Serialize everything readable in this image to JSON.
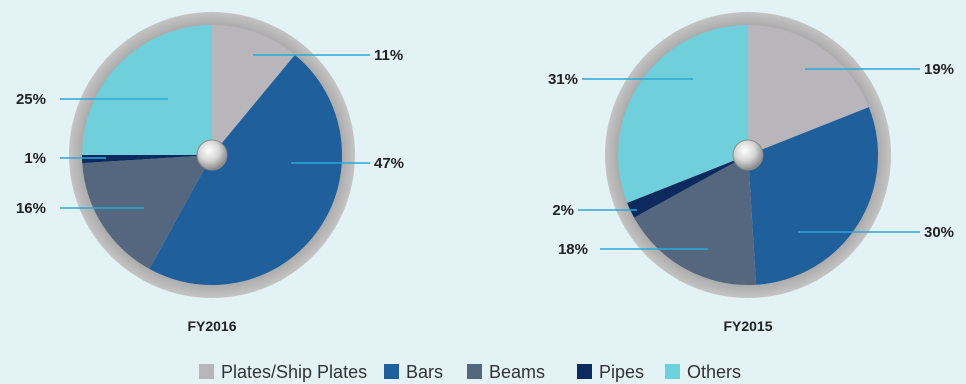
{
  "chart_data": [
    {
      "type": "pie",
      "title": "FY2016",
      "categories": [
        "Plates/Ship Plates",
        "Bars",
        "Beams",
        "Pipes",
        "Others"
      ],
      "values": [
        11,
        47,
        16,
        1,
        25
      ],
      "labels": [
        "11%",
        "47%",
        "16%",
        "1%",
        "25%"
      ]
    },
    {
      "type": "pie",
      "title": "FY2015",
      "categories": [
        "Plates/Ship Plates",
        "Bars",
        "Beams",
        "Pipes",
        "Others"
      ],
      "values": [
        19,
        30,
        18,
        2,
        31
      ],
      "labels": [
        "19%",
        "30%",
        "18%",
        "2%",
        "31%"
      ]
    }
  ],
  "legend": {
    "placement": "bottom",
    "items": [
      {
        "label": "Plates/Ship Plates",
        "color": "#b9b6bb"
      },
      {
        "label": "Bars",
        "color": "#1e5f9c"
      },
      {
        "label": "Beams",
        "color": "#55677f"
      },
      {
        "label": "Pipes",
        "color": "#0c2a5e"
      },
      {
        "label": "Others",
        "color": "#6fcfdb"
      }
    ]
  },
  "colors": {
    "slices": [
      "#b9b6bb",
      "#1e5f9c",
      "#55677f",
      "#0c2a5e",
      "#6fcfdb"
    ],
    "leader_line": "#2aa8d8",
    "background": "#e2f2f5"
  }
}
